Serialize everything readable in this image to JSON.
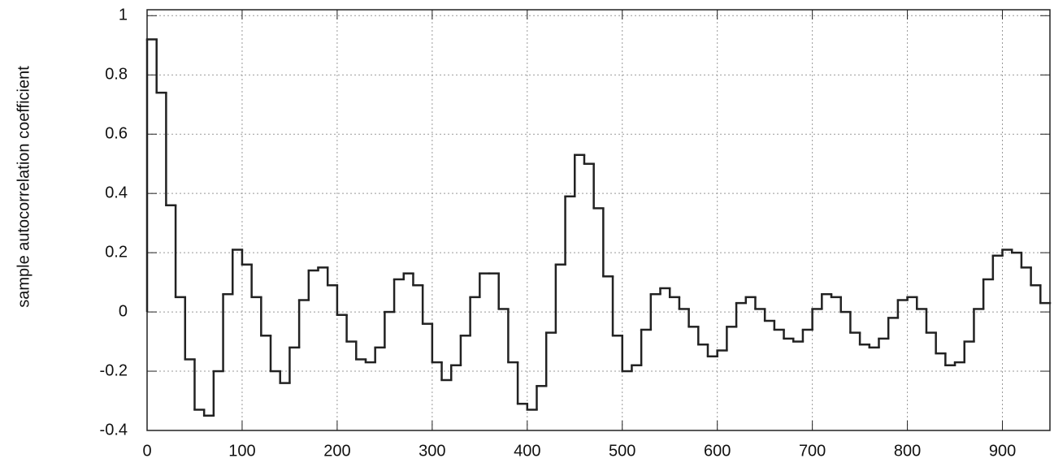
{
  "chart_data": {
    "type": "histogram",
    "ylabel": "sample autocorrelation coefficient",
    "bins": [
      0,
      10,
      20,
      30,
      40,
      50,
      60,
      70,
      80,
      90,
      100,
      110,
      120,
      130,
      140,
      150,
      160,
      170,
      180,
      190,
      200,
      210,
      220,
      230,
      240,
      250,
      260,
      270,
      280,
      290,
      300,
      310,
      320,
      330,
      340,
      350,
      360,
      370,
      380,
      390,
      400,
      410,
      420,
      430,
      440,
      450,
      460,
      470,
      480,
      490,
      500,
      510,
      520,
      530,
      540,
      550,
      560,
      570,
      580,
      590,
      600,
      610,
      620,
      630,
      640,
      650,
      660,
      670,
      680,
      690,
      700,
      710,
      720,
      730,
      740,
      750,
      760,
      770,
      780,
      790,
      800,
      810,
      820,
      830,
      840,
      850,
      860,
      870,
      880,
      890,
      900,
      910,
      920,
      930,
      940,
      950
    ],
    "values": [
      0.92,
      0.74,
      0.36,
      0.05,
      -0.16,
      -0.33,
      -0.35,
      -0.2,
      0.06,
      0.21,
      0.16,
      0.05,
      -0.08,
      -0.2,
      -0.24,
      -0.12,
      0.04,
      0.14,
      0.15,
      0.09,
      -0.01,
      -0.1,
      -0.16,
      -0.17,
      -0.12,
      0.0,
      0.11,
      0.13,
      0.09,
      -0.04,
      -0.17,
      -0.23,
      -0.18,
      -0.08,
      0.05,
      0.13,
      0.13,
      0.01,
      -0.17,
      -0.31,
      -0.33,
      -0.25,
      -0.07,
      0.16,
      0.39,
      0.53,
      0.5,
      0.35,
      0.12,
      -0.08,
      -0.2,
      -0.18,
      -0.06,
      0.06,
      0.08,
      0.05,
      0.01,
      -0.05,
      -0.11,
      -0.15,
      -0.13,
      -0.05,
      0.03,
      0.05,
      0.01,
      -0.03,
      -0.06,
      -0.09,
      -0.1,
      -0.06,
      0.01,
      0.06,
      0.05,
      0.0,
      -0.07,
      -0.11,
      -0.12,
      -0.09,
      -0.02,
      0.04,
      0.05,
      0.01,
      -0.07,
      -0.14,
      -0.18,
      -0.17,
      -0.1,
      0.01,
      0.11,
      0.19,
      0.21,
      0.2,
      0.15,
      0.09,
      0.03
    ],
    "color": "#222222",
    "xlim": [
      0,
      950
    ],
    "xticks": [
      0,
      100,
      200,
      300,
      400,
      500,
      600,
      700,
      800,
      900
    ],
    "ylim": [
      -0.4,
      1.02
    ],
    "yticks": [
      -0.4,
      -0.2,
      0,
      0.2,
      0.4,
      0.6,
      0.8,
      1
    ],
    "grid": true
  }
}
